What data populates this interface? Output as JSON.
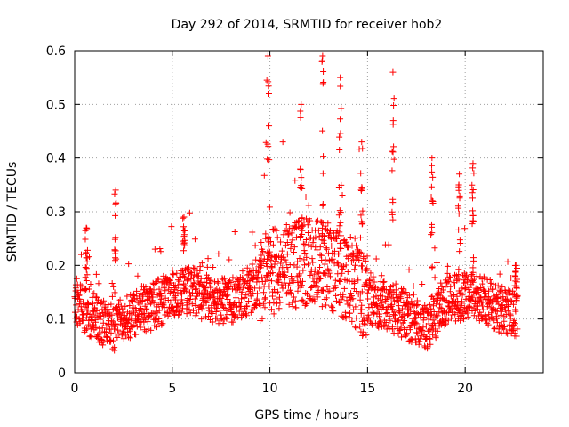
{
  "chart_data": {
    "type": "scatter",
    "title": "Day 292 of 2014, SRMTID for receiver hob2",
    "xlabel": "GPS time / hours",
    "ylabel": "SRMTID / TECUs",
    "xlim": [
      0,
      24
    ],
    "ylim": [
      0,
      0.6
    ],
    "xticks": [
      0,
      5,
      10,
      15,
      20
    ],
    "yticks": [
      0,
      0.1,
      0.2,
      0.3,
      0.4,
      0.5,
      0.6
    ],
    "xtick_labels": [
      "0",
      "5",
      "10",
      "15",
      "20"
    ],
    "ytick_labels": [
      "0",
      "0.1",
      "0.2",
      "0.3",
      "0.4",
      "0.5",
      "0.6"
    ],
    "grid": true,
    "marker": "+",
    "color": "#ff0000",
    "series": [
      {
        "name": "SRMTID",
        "profile_hours": [
          0,
          1,
          2,
          3,
          4,
          5,
          6,
          7,
          8,
          9,
          10,
          11,
          12,
          13,
          14,
          15,
          16,
          17,
          18,
          19,
          20,
          21,
          22,
          22.7
        ],
        "profile_median": [
          0.13,
          0.1,
          0.08,
          0.11,
          0.12,
          0.14,
          0.15,
          0.13,
          0.13,
          0.15,
          0.18,
          0.19,
          0.2,
          0.19,
          0.17,
          0.13,
          0.12,
          0.1,
          0.08,
          0.13,
          0.14,
          0.13,
          0.11,
          0.1
        ],
        "peaks": [
          {
            "x": 0.6,
            "y": 0.27
          },
          {
            "x": 2.1,
            "y": 0.34
          },
          {
            "x": 5.6,
            "y": 0.29
          },
          {
            "x": 9.9,
            "y": 0.59
          },
          {
            "x": 11.6,
            "y": 0.5
          },
          {
            "x": 12.7,
            "y": 0.59
          },
          {
            "x": 13.6,
            "y": 0.55
          },
          {
            "x": 14.7,
            "y": 0.43
          },
          {
            "x": 16.3,
            "y": 0.56
          },
          {
            "x": 18.3,
            "y": 0.4
          },
          {
            "x": 19.7,
            "y": 0.37
          },
          {
            "x": 20.4,
            "y": 0.39
          },
          {
            "x": 22.6,
            "y": 0.2
          }
        ]
      }
    ]
  }
}
